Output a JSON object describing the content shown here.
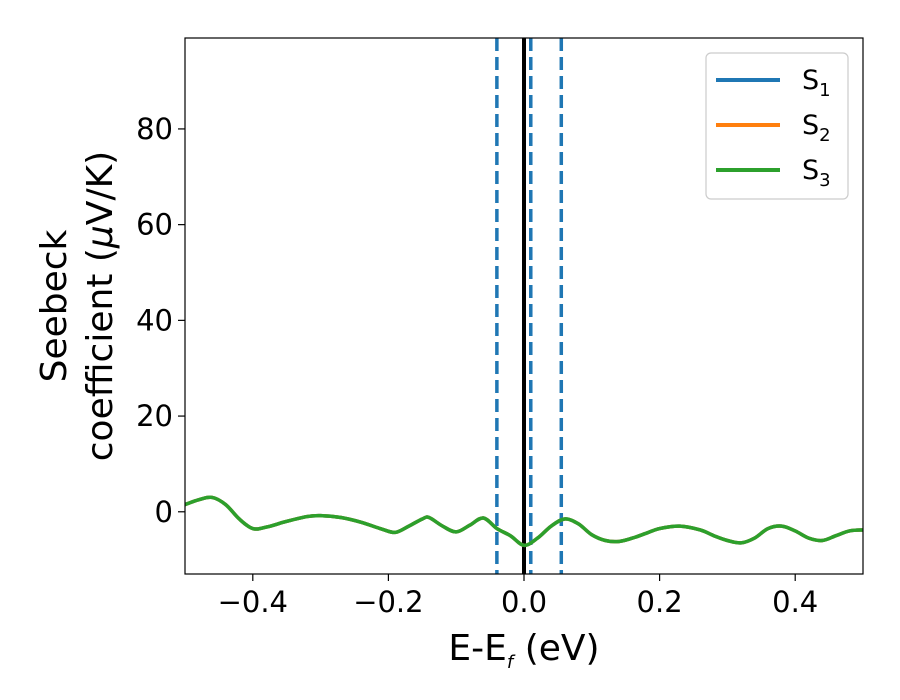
{
  "chart_data": {
    "type": "line",
    "title": "",
    "xlabel": {
      "main": "E-E",
      "sub": "f",
      "suffix": " (eV)"
    },
    "ylabel": {
      "line1": "Seebeck",
      "line2_main": "coefficient  (",
      "line2_mu": "μ",
      "line2_suffix": "V/K)"
    },
    "xlim": [
      -0.5,
      0.5
    ],
    "ylim": [
      -13,
      99
    ],
    "xticks": [
      -0.4,
      -0.2,
      0.0,
      0.2,
      0.4
    ],
    "xtick_labels": [
      "−0.4",
      "−0.2",
      "0.0",
      "0.2",
      "0.4"
    ],
    "yticks": [
      0,
      20,
      40,
      60,
      80
    ],
    "ytick_labels": [
      "0",
      "20",
      "40",
      "60",
      "80"
    ],
    "grid": false,
    "legend_position": "top-right",
    "x": [
      -0.5,
      -0.48,
      -0.46,
      -0.44,
      -0.42,
      -0.4,
      -0.38,
      -0.35,
      -0.32,
      -0.3,
      -0.27,
      -0.24,
      -0.21,
      -0.19,
      -0.17,
      -0.15,
      -0.14,
      -0.12,
      -0.1,
      -0.08,
      -0.06,
      -0.04,
      -0.02,
      0.0,
      0.02,
      0.04,
      0.06,
      0.08,
      0.1,
      0.12,
      0.14,
      0.16,
      0.18,
      0.2,
      0.23,
      0.26,
      0.28,
      0.3,
      0.32,
      0.34,
      0.36,
      0.38,
      0.4,
      0.42,
      0.44,
      0.46,
      0.48,
      0.5
    ],
    "series": [
      {
        "name": "S1",
        "label_main": "S",
        "label_sub": "1",
        "color": "#1f77b4",
        "y": [
          1.5,
          2.5,
          3.0,
          1.5,
          -1.5,
          -3.5,
          -3.2,
          -2.0,
          -1.0,
          -0.8,
          -1.2,
          -2.2,
          -3.6,
          -4.3,
          -3.0,
          -1.5,
          -1.2,
          -3.0,
          -4.2,
          -2.8,
          -1.3,
          -3.5,
          -5.0,
          -7.0,
          -5.5,
          -3.0,
          -1.5,
          -2.5,
          -4.8,
          -6.0,
          -6.2,
          -5.5,
          -4.5,
          -3.5,
          -3.0,
          -3.8,
          -5.0,
          -6.0,
          -6.5,
          -5.5,
          -3.5,
          -3.0,
          -4.0,
          -5.5,
          -6.0,
          -5.0,
          -4.0,
          -3.8
        ]
      },
      {
        "name": "S2",
        "label_main": "S",
        "label_sub": "2",
        "color": "#ff7f0e",
        "y": [
          1.5,
          2.5,
          3.0,
          1.5,
          -1.5,
          -3.5,
          -3.2,
          -2.0,
          -1.0,
          -0.8,
          -1.2,
          -2.2,
          -3.6,
          -4.3,
          -3.0,
          -1.5,
          -1.2,
          -3.0,
          -4.2,
          -2.8,
          -1.3,
          -3.5,
          -5.0,
          -7.0,
          -5.5,
          -3.0,
          -1.5,
          -2.5,
          -4.8,
          -6.0,
          -6.2,
          -5.5,
          -4.5,
          -3.5,
          -3.0,
          -3.8,
          -5.0,
          -6.0,
          -6.5,
          -5.5,
          -3.5,
          -3.0,
          -4.0,
          -5.5,
          -6.0,
          -5.0,
          -4.0,
          -3.8
        ]
      },
      {
        "name": "S3",
        "label_main": "S",
        "label_sub": "3",
        "color": "#2ca02c",
        "y": [
          1.5,
          2.5,
          3.0,
          1.5,
          -1.5,
          -3.5,
          -3.2,
          -2.0,
          -1.0,
          -0.8,
          -1.2,
          -2.2,
          -3.6,
          -4.3,
          -3.0,
          -1.5,
          -1.2,
          -3.0,
          -4.2,
          -2.8,
          -1.3,
          -3.5,
          -5.0,
          -7.0,
          -5.5,
          -3.0,
          -1.5,
          -2.5,
          -4.8,
          -6.0,
          -6.2,
          -5.5,
          -4.5,
          -3.5,
          -3.0,
          -3.8,
          -5.0,
          -6.0,
          -6.5,
          -5.5,
          -3.5,
          -3.0,
          -4.0,
          -5.5,
          -6.0,
          -5.0,
          -4.0,
          -3.8
        ]
      }
    ],
    "vertical_lines": [
      {
        "x": 0.0,
        "style": "solid",
        "color": "#000000"
      },
      {
        "x": -0.04,
        "style": "dashed",
        "color": "#1f77b4"
      },
      {
        "x": 0.01,
        "style": "dashed",
        "color": "#1f77b4"
      },
      {
        "x": 0.055,
        "style": "dashed",
        "color": "#1f77b4"
      }
    ]
  }
}
